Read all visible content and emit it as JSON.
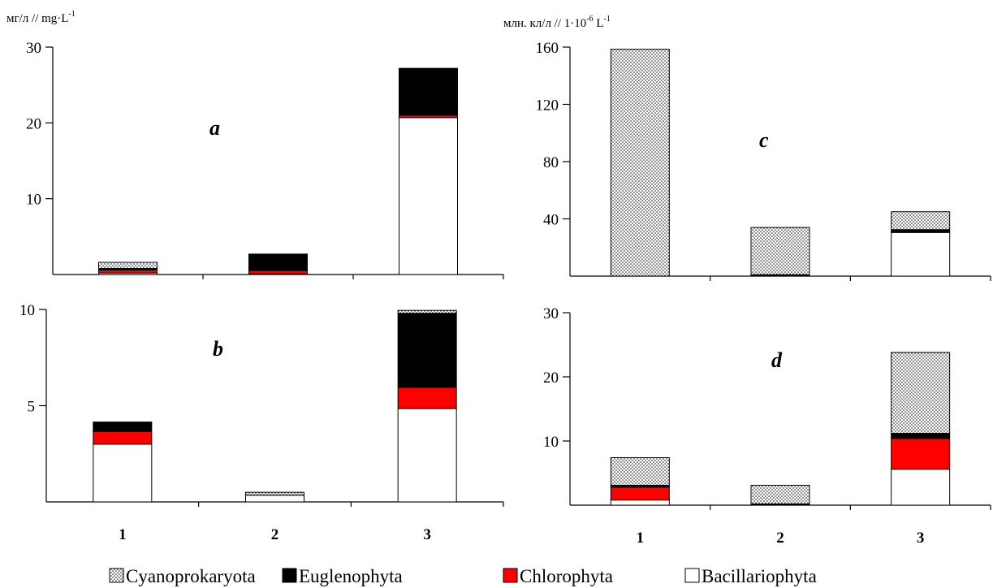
{
  "y_unit_left": "мг/л // mg·L",
  "y_unit_left_sup": "-1",
  "y_unit_right_pre": "млн. кл/л // 1·10",
  "y_unit_right_sup1": "-6",
  "y_unit_right_mid": " L",
  "y_unit_right_sup2": "-1",
  "colors": {
    "Cyanoprokaryota": "dotted",
    "Euglenophyta": "#000000",
    "Chlorophyta": "#ff0000",
    "Bacillariophyta": "#ffffff"
  },
  "legend": [
    "Cyanoprokaryota",
    "Euglenophyta",
    "Chlorophyta",
    "Bacillariophyta"
  ],
  "chart_data": [
    {
      "type": "bar",
      "stacked": true,
      "panel": "a",
      "categories": [
        "1",
        "2",
        "3"
      ],
      "ylim": [
        0,
        30
      ],
      "yticks": [
        10,
        20,
        30
      ],
      "series": [
        {
          "name": "Bacillariophyta",
          "values": [
            0.2,
            0.1,
            20.7
          ]
        },
        {
          "name": "Chlorophyta",
          "values": [
            0.4,
            0.4,
            0.3
          ]
        },
        {
          "name": "Euglenophyta",
          "values": [
            0.2,
            2.2,
            6.2
          ]
        },
        {
          "name": "Cyanoprokaryota",
          "values": [
            0.8,
            0,
            0
          ]
        }
      ]
    },
    {
      "type": "bar",
      "stacked": true,
      "panel": "b",
      "categories": [
        "1",
        "2",
        "3"
      ],
      "ylim": [
        0,
        10
      ],
      "yticks": [
        5,
        10
      ],
      "series": [
        {
          "name": "Bacillariophyta",
          "values": [
            3.0,
            0.35,
            4.85
          ]
        },
        {
          "name": "Chlorophyta",
          "values": [
            0.65,
            0,
            1.1
          ]
        },
        {
          "name": "Euglenophyta",
          "values": [
            0.5,
            0,
            3.85
          ]
        },
        {
          "name": "Cyanoprokaryota",
          "values": [
            0,
            0.15,
            0.15
          ]
        }
      ]
    },
    {
      "type": "bar",
      "stacked": true,
      "panel": "c",
      "categories": [
        "1",
        "2",
        "3"
      ],
      "ylim": [
        0,
        160
      ],
      "yticks": [
        40,
        80,
        120,
        160
      ],
      "series": [
        {
          "name": "Bacillariophyta",
          "values": [
            0,
            0.5,
            30.5
          ]
        },
        {
          "name": "Chlorophyta",
          "values": [
            0,
            0.3,
            0.5
          ]
        },
        {
          "name": "Euglenophyta",
          "values": [
            0,
            0.2,
            1.5
          ]
        },
        {
          "name": "Cyanoprokaryota",
          "values": [
            158.5,
            33,
            12.5
          ]
        }
      ]
    },
    {
      "type": "bar",
      "stacked": true,
      "panel": "d",
      "categories": [
        "1",
        "2",
        "3"
      ],
      "ylim": [
        0,
        30
      ],
      "yticks": [
        10,
        20,
        30
      ],
      "series": [
        {
          "name": "Bacillariophyta",
          "values": [
            0.8,
            0.1,
            5.6
          ]
        },
        {
          "name": "Chlorophyta",
          "values": [
            2.0,
            0.1,
            4.8
          ]
        },
        {
          "name": "Euglenophyta",
          "values": [
            0.3,
            0,
            0.8
          ]
        },
        {
          "name": "Cyanoprokaryota",
          "values": [
            4.3,
            2.9,
            12.6
          ]
        }
      ]
    }
  ]
}
